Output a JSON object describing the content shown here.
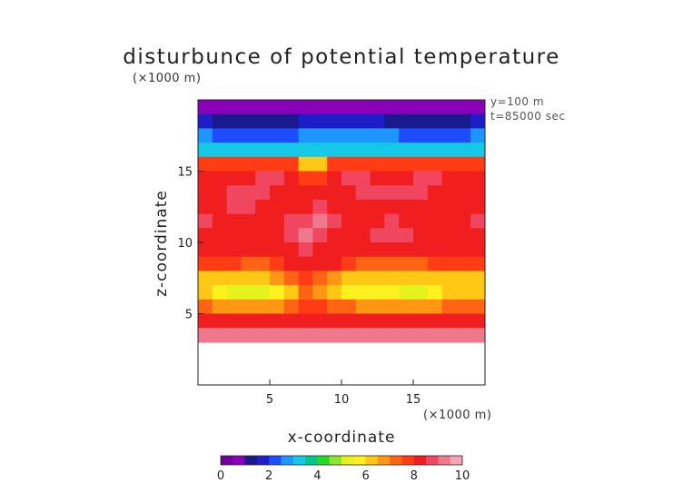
{
  "chart_data": {
    "type": "heatmap",
    "title": "disturbunce of potential temperature",
    "xlabel": "x-coordinate",
    "ylabel": "z-coordinate",
    "x_unit": "(×1000 m)",
    "y_unit": "(×1000 m)",
    "annotations": [
      "y=100 m",
      "t=85000 sec"
    ],
    "xlim": [
      0,
      20
    ],
    "ylim": [
      0,
      20
    ],
    "xticks": [
      5,
      10,
      15
    ],
    "yticks": [
      5,
      10,
      15
    ],
    "color_scale": {
      "min": 0,
      "max": 10,
      "ticks": [
        0,
        2,
        4,
        6,
        8,
        10
      ],
      "levels": 20,
      "colors": [
        "#6e0099",
        "#8a00b8",
        "#1a1a8c",
        "#1e1ec8",
        "#1e4cff",
        "#1e96ff",
        "#14c8e6",
        "#00c88c",
        "#2ad62a",
        "#8ee62a",
        "#e6f21e",
        "#fff01e",
        "#ffc814",
        "#ff9614",
        "#ff6414",
        "#ff3c14",
        "#f01e1e",
        "#f04660",
        "#f0788c",
        "#f5a5b4"
      ]
    },
    "values": [
      [
        0.5,
        0.5,
        0.5,
        0.5,
        0.5,
        0.5,
        0.5,
        0.5,
        0.5,
        0.5,
        0.5,
        0.5,
        0.5,
        0.5,
        0.5,
        0.5,
        0.5,
        0.5,
        0.5,
        0.5
      ],
      [
        1.5,
        1.2,
        1.0,
        1.0,
        1.0,
        1.0,
        1.2,
        1.5,
        1.5,
        1.5,
        1.5,
        1.5,
        1.5,
        1.2,
        1.0,
        1.0,
        1.0,
        1.0,
        1.2,
        1.5
      ],
      [
        2.5,
        2.0,
        2.0,
        2.0,
        2.0,
        2.0,
        2.0,
        2.5,
        2.5,
        2.5,
        2.5,
        2.5,
        2.5,
        2.5,
        2.0,
        2.0,
        2.0,
        2.0,
        2.0,
        2.5
      ],
      [
        3.0,
        3.0,
        3.0,
        3.0,
        3.0,
        3.0,
        3.0,
        3.0,
        3.0,
        3.0,
        3.0,
        3.0,
        3.0,
        3.0,
        3.0,
        3.0,
        3.0,
        3.0,
        3.0,
        3.0
      ],
      [
        7.5,
        7.5,
        7.5,
        7.5,
        7.5,
        7.5,
        7.5,
        6.0,
        6.0,
        7.5,
        7.5,
        7.5,
        7.5,
        7.5,
        7.5,
        7.5,
        7.5,
        7.5,
        7.5,
        7.5
      ],
      [
        8.0,
        8.0,
        8.0,
        8.0,
        8.5,
        8.5,
        8.0,
        7.5,
        7.5,
        8.0,
        8.5,
        8.5,
        8.0,
        8.0,
        8.0,
        8.5,
        8.5,
        8.0,
        8.0,
        8.0
      ],
      [
        8.0,
        8.0,
        8.5,
        8.5,
        8.5,
        8.0,
        8.0,
        8.0,
        8.0,
        8.0,
        8.0,
        8.5,
        8.5,
        8.5,
        8.5,
        8.5,
        8.0,
        8.0,
        8.0,
        8.0
      ],
      [
        8.0,
        8.0,
        8.5,
        8.5,
        8.0,
        8.0,
        8.0,
        8.0,
        8.5,
        8.0,
        8.0,
        8.0,
        8.0,
        8.0,
        8.0,
        8.0,
        8.0,
        8.0,
        8.0,
        8.0
      ],
      [
        8.5,
        8.0,
        8.0,
        8.0,
        8.0,
        8.0,
        8.5,
        8.5,
        9.0,
        8.5,
        8.0,
        8.0,
        8.0,
        8.5,
        8.0,
        8.0,
        8.0,
        8.0,
        8.0,
        8.5
      ],
      [
        8.0,
        8.0,
        8.0,
        8.0,
        8.0,
        8.0,
        8.5,
        9.0,
        8.5,
        8.0,
        8.0,
        8.0,
        8.5,
        8.5,
        8.5,
        8.0,
        8.0,
        8.0,
        8.0,
        8.0
      ],
      [
        8.0,
        8.0,
        8.0,
        8.0,
        8.0,
        8.0,
        8.0,
        8.5,
        8.0,
        8.0,
        8.0,
        8.0,
        8.0,
        8.0,
        8.0,
        8.0,
        8.0,
        8.0,
        8.0,
        8.0
      ],
      [
        7.5,
        7.5,
        7.5,
        7.0,
        7.0,
        7.5,
        8.0,
        8.0,
        8.0,
        8.0,
        7.5,
        7.0,
        7.0,
        7.0,
        7.0,
        7.0,
        7.5,
        7.5,
        7.5,
        7.5
      ],
      [
        6.0,
        6.0,
        6.0,
        6.0,
        6.0,
        6.5,
        7.0,
        7.5,
        7.0,
        6.5,
        6.0,
        6.0,
        6.0,
        6.0,
        6.0,
        6.0,
        6.0,
        6.0,
        6.0,
        6.0
      ],
      [
        6.0,
        5.5,
        5.0,
        5.0,
        5.0,
        5.5,
        6.0,
        7.0,
        6.5,
        6.0,
        5.5,
        5.5,
        5.5,
        5.5,
        5.0,
        5.0,
        5.5,
        6.0,
        6.0,
        6.0
      ],
      [
        7.0,
        6.5,
        6.5,
        6.5,
        6.5,
        6.5,
        7.0,
        7.5,
        7.5,
        7.0,
        7.0,
        6.5,
        6.5,
        6.5,
        6.5,
        6.5,
        6.5,
        7.0,
        7.0,
        7.0
      ],
      [
        8.0,
        8.0,
        8.0,
        8.0,
        8.0,
        8.0,
        8.0,
        8.0,
        8.0,
        8.0,
        8.0,
        8.0,
        8.0,
        8.0,
        8.0,
        8.0,
        8.0,
        8.0,
        8.0,
        8.0
      ],
      [
        9.0,
        9.0,
        9.0,
        9.0,
        9.0,
        9.0,
        9.0,
        9.0,
        9.0,
        9.0,
        9.0,
        9.0,
        9.0,
        9.0,
        9.0,
        9.0,
        9.0,
        9.0,
        9.0,
        9.0
      ],
      [
        null,
        null,
        null,
        null,
        null,
        null,
        null,
        null,
        null,
        null,
        null,
        null,
        null,
        null,
        null,
        null,
        null,
        null,
        null,
        null
      ],
      [
        null,
        null,
        null,
        null,
        null,
        null,
        null,
        null,
        null,
        null,
        null,
        null,
        null,
        null,
        null,
        null,
        null,
        null,
        null,
        null
      ],
      [
        null,
        null,
        null,
        null,
        null,
        null,
        null,
        null,
        null,
        null,
        null,
        null,
        null,
        null,
        null,
        null,
        null,
        null,
        null,
        null
      ]
    ],
    "rows_order": "top-to-bottom (z from 20 down to 0)",
    "grid": false,
    "legend": "bottom"
  }
}
